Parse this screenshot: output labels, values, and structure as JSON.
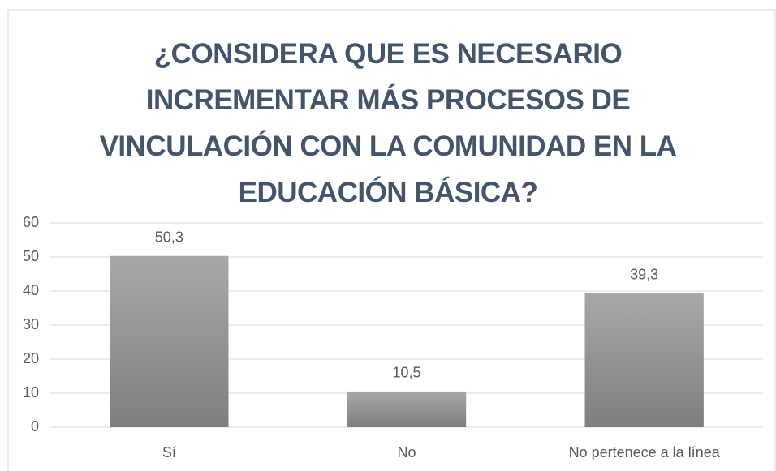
{
  "chart_data": {
    "type": "bar",
    "title": "¿CONSIDERA QUE ES NECESARIO\nINCREMENTAR MÁS PROCESOS DE\nVINCULACIÓN CON LA COMUNIDAD EN LA\nEDUCACIÓN BÁSICA?",
    "categories": [
      "Sí",
      "No",
      "No pertenece a la línea"
    ],
    "values": [
      50.3,
      10.5,
      39.3
    ],
    "value_labels": [
      "50,3",
      "10,5",
      "39,3"
    ],
    "color": "#8f8f8f",
    "ylim": [
      0,
      60
    ],
    "yticks": [
      0,
      10,
      20,
      30,
      40,
      50,
      60
    ],
    "grid": true
  }
}
